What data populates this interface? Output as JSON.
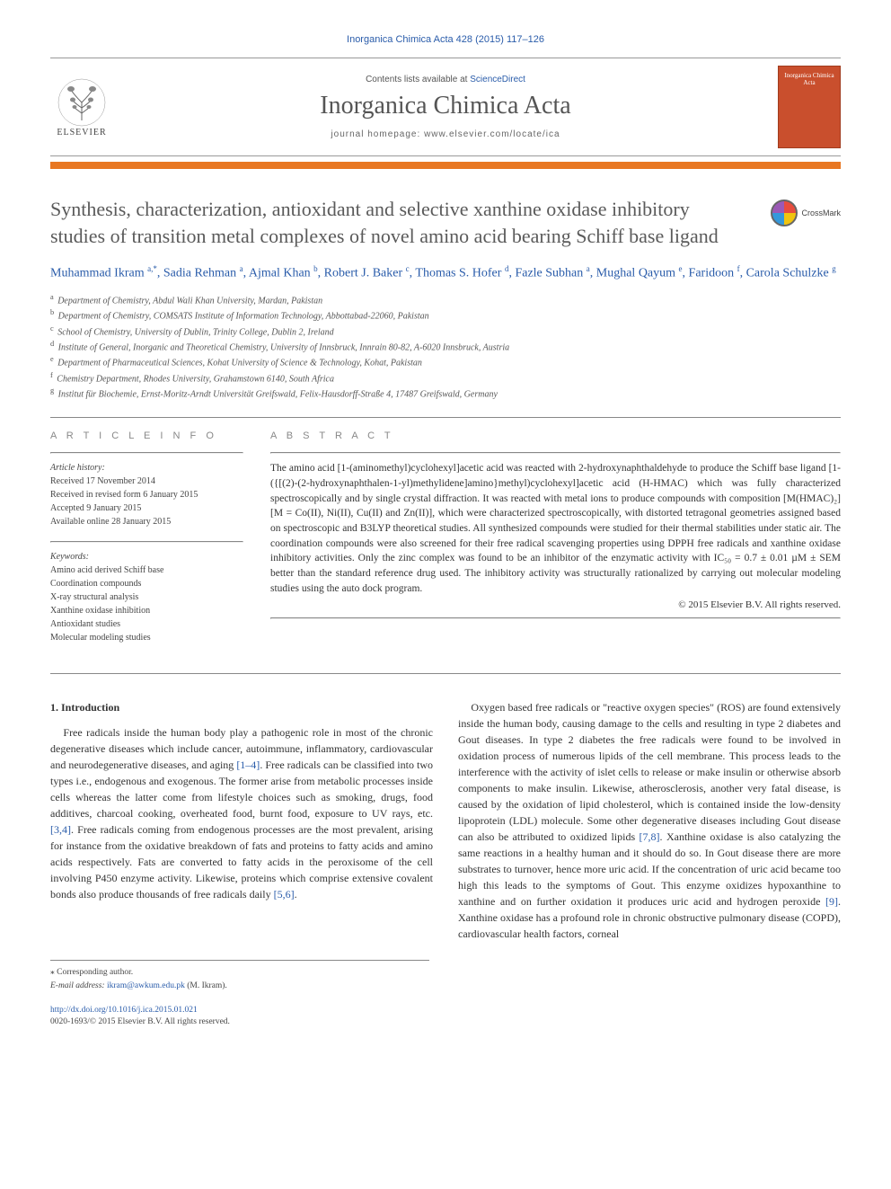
{
  "journal_ref": "Inorganica Chimica Acta 428 (2015) 117–126",
  "header": {
    "contents_prefix": "Contents lists available at ",
    "contents_link": "ScienceDirect",
    "journal_title": "Inorganica Chimica Acta",
    "homepage_prefix": "journal homepage: ",
    "homepage_url": "www.elsevier.com/locate/ica",
    "publisher_logo_text": "ELSEVIER",
    "cover_text": "Inorganica Chimica Acta"
  },
  "crossmark_label": "CrossMark",
  "article": {
    "title": "Synthesis, characterization, antioxidant and selective xanthine oxidase inhibitory studies of transition metal complexes of novel amino acid bearing Schiff base ligand",
    "authors_html": "Muhammad Ikram <sup>a,*</sup>, Sadia Rehman <sup>a</sup>, Ajmal Khan <sup>b</sup>, Robert J. Baker <sup>c</sup>, Thomas S. Hofer <sup>d</sup>, Fazle Subhan <sup>a</sup>, Mughal Qayum <sup>e</sup>, Faridoon <sup>f</sup>, Carola Schulzke <sup>g</sup>",
    "affiliations": [
      {
        "sup": "a",
        "text": "Department of Chemistry, Abdul Wali Khan University, Mardan, Pakistan"
      },
      {
        "sup": "b",
        "text": "Department of Chemistry, COMSATS Institute of Information Technology, Abbottabad-22060, Pakistan"
      },
      {
        "sup": "c",
        "text": "School of Chemistry, University of Dublin, Trinity College, Dublin 2, Ireland"
      },
      {
        "sup": "d",
        "text": "Institute of General, Inorganic and Theoretical Chemistry, University of Innsbruck, Innrain 80-82, A-6020 Innsbruck, Austria"
      },
      {
        "sup": "e",
        "text": "Department of Pharmaceutical Sciences, Kohat University of Science & Technology, Kohat, Pakistan"
      },
      {
        "sup": "f",
        "text": "Chemistry Department, Rhodes University, Grahamstown 6140, South Africa"
      },
      {
        "sup": "g",
        "text": "Institut für Biochemie, Ernst-Moritz-Arndt Universität Greifswald, Felix-Hausdorff-Straße 4, 17487 Greifswald, Germany"
      }
    ]
  },
  "info": {
    "heading": "A R T I C L E   I N F O",
    "history_label": "Article history:",
    "history": [
      "Received 17 November 2014",
      "Received in revised form 6 January 2015",
      "Accepted 9 January 2015",
      "Available online 28 January 2015"
    ],
    "keywords_label": "Keywords:",
    "keywords": [
      "Amino acid derived Schiff base",
      "Coordination compounds",
      "X-ray structural analysis",
      "Xanthine oxidase inhibition",
      "Antioxidant studies",
      "Molecular modeling studies"
    ]
  },
  "abstract": {
    "heading": "A B S T R A C T",
    "text": "The amino acid [1-(aminomethyl)cyclohexyl]acetic acid was reacted with 2-hydroxynaphthaldehyde to produce the Schiff base ligand [1-({[(2)-(2-hydroxynaphthalen-1-yl)methylidene]amino}methyl)cyclohexyl]acetic acid (H-HMAC) which was fully characterized spectroscopically and by single crystal diffraction. It was reacted with metal ions to produce compounds with composition [M(HMAC)₂] [M = Co(II), Ni(II), Cu(II) and Zn(II)], which were characterized spectroscopically, with distorted tetragonal geometries assigned based on spectroscopic and B3LYP theoretical studies. All synthesized compounds were studied for their thermal stabilities under static air. The coordination compounds were also screened for their free radical scavenging properties using DPPH free radicals and xanthine oxidase inhibitory activities. Only the zinc complex was found to be an inhibitor of the enzymatic activity with IC₅₀ = 0.7 ± 0.01 µM ± SEM better than the standard reference drug used. The inhibitory activity was structurally rationalized by carrying out molecular modeling studies using the auto dock program.",
    "copyright": "© 2015 Elsevier B.V. All rights reserved."
  },
  "body": {
    "section_heading": "1. Introduction",
    "left_para": "Free radicals inside the human body play a pathogenic role in most of the chronic degenerative diseases which include cancer, autoimmune, inflammatory, cardiovascular and neurodegenerative diseases, and aging [1–4]. Free radicals can be classified into two types i.e., endogenous and exogenous. The former arise from metabolic processes inside cells whereas the latter come from lifestyle choices such as smoking, drugs, food additives, charcoal cooking, overheated food, burnt food, exposure to UV rays, etc. [3,4]. Free radicals coming from endogenous processes are the most prevalent, arising for instance from the oxidative breakdown of fats and proteins to fatty acids and amino acids respectively. Fats are converted to fatty acids in the peroxisome of the cell involving P450 enzyme activity. Likewise, proteins which comprise extensive covalent bonds also produce thousands of free radicals daily [5,6].",
    "right_para": "Oxygen based free radicals or \"reactive oxygen species\" (ROS) are found extensively inside the human body, causing damage to the cells and resulting in type 2 diabetes and Gout diseases. In type 2 diabetes the free radicals were found to be involved in oxidation process of numerous lipids of the cell membrane. This process leads to the interference with the activity of islet cells to release or make insulin or otherwise absorb components to make insulin. Likewise, atherosclerosis, another very fatal disease, is caused by the oxidation of lipid cholesterol, which is contained inside the low-density lipoprotein (LDL) molecule. Some other degenerative diseases including Gout disease can also be attributed to oxidized lipids [7,8]. Xanthine oxidase is also catalyzing the same reactions in a healthy human and it should do so. In Gout disease there are more substrates to turnover, hence more uric acid. If the concentration of uric acid became too high this leads to the symptoms of Gout. This enzyme oxidizes hypoxanthine to xanthine and on further oxidation it produces uric acid and hydrogen peroxide [9]. Xanthine oxidase has a profound role in chronic obstructive pulmonary disease (COPD), cardiovascular health factors, corneal"
  },
  "corr": {
    "label": "⁎ Corresponding author.",
    "email_label": "E-mail address:",
    "email": "ikram@awkum.edu.pk",
    "email_suffix": "(M. Ikram)."
  },
  "footer": {
    "doi": "http://dx.doi.org/10.1016/j.ica.2015.01.021",
    "issn_copy": "0020-1693/© 2015 Elsevier B.V. All rights reserved."
  },
  "colors": {
    "link": "#2a5caa",
    "accent_bar": "#e87722",
    "cover_bg": "#c94f2d",
    "text": "#333333",
    "muted": "#555555"
  }
}
